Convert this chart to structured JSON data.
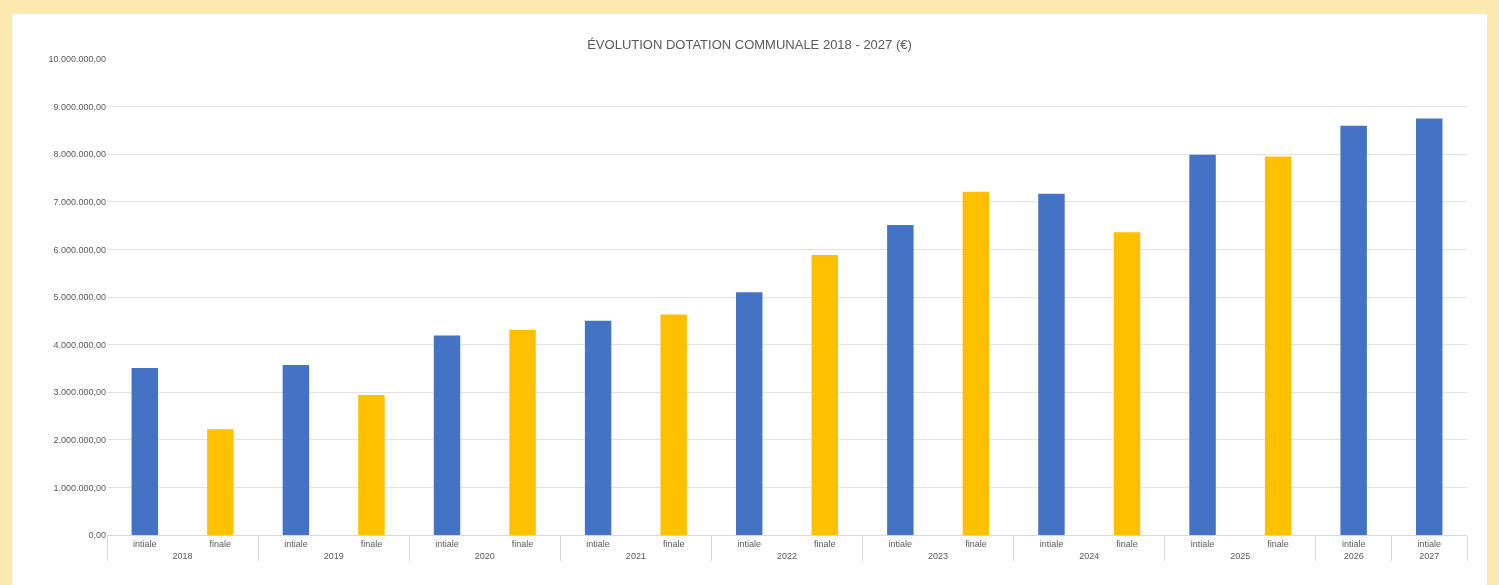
{
  "chart_data": {
    "type": "bar",
    "title": "ÉVOLUTION DOTATION COMMUNALE 2018 - 2027 (€)",
    "categories": [
      "2018",
      "2019",
      "2020",
      "2021",
      "2022",
      "2023",
      "2024",
      "2025",
      "2026",
      "2027"
    ],
    "series": [
      {
        "name": "intiale",
        "color": "#4472c4",
        "values": [
          3510000,
          3570000,
          4190000,
          4500000,
          5100000,
          6510000,
          7170000,
          7990000,
          8600000,
          8750000
        ]
      },
      {
        "name": "finale",
        "color": "#ffc000",
        "values": [
          2220000,
          2940000,
          4310000,
          4630000,
          5880000,
          7210000,
          6360000,
          7950000,
          null,
          null
        ]
      }
    ],
    "ylim": [
      0,
      10000000
    ],
    "yticks": [
      {
        "value": 0,
        "label": "0,00"
      },
      {
        "value": 1000000,
        "label": "1.000.000,00"
      },
      {
        "value": 2000000,
        "label": "2.000.000,00"
      },
      {
        "value": 3000000,
        "label": "3.000.000,00"
      },
      {
        "value": 4000000,
        "label": "4.000.000,00"
      },
      {
        "value": 5000000,
        "label": "5.000.000,00"
      },
      {
        "value": 6000000,
        "label": "6.000.000,00"
      },
      {
        "value": 7000000,
        "label": "7.000.000,00"
      },
      {
        "value": 8000000,
        "label": "8.000.000,00"
      },
      {
        "value": 9000000,
        "label": "9.000.000,00"
      },
      {
        "value": 10000000,
        "label": "10.000.000,00"
      }
    ],
    "grid": "y",
    "legend": false
  }
}
